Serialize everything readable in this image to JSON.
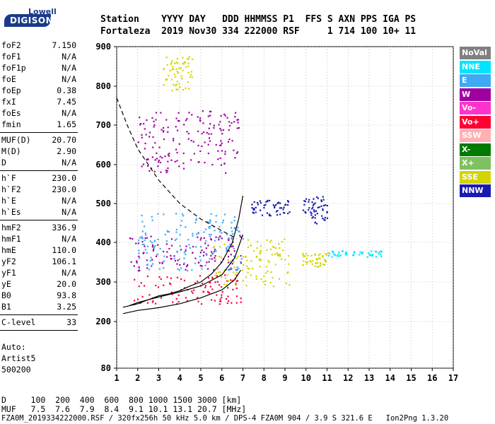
{
  "logo": {
    "top": "Lowell",
    "bottom": "DIGISONDE"
  },
  "header": {
    "row1": "Station    YYYY DAY   DDD HHMMSS P1  FFS S AXN PPS IGA PS",
    "row2": "Fortaleza  2019 Nov30 334 222000 RSF     1 714 100 10+ 11"
  },
  "params_group1": [
    {
      "key": "foF2",
      "value": "7.150"
    },
    {
      "key": "foF1",
      "value": "N/A"
    },
    {
      "key": "foF1p",
      "value": "N/A"
    },
    {
      "key": "foE",
      "value": "N/A"
    },
    {
      "key": "foEp",
      "value": "0.38"
    },
    {
      "key": "fxI",
      "value": "7.45"
    },
    {
      "key": "foEs",
      "value": "N/A"
    },
    {
      "key": "fmin",
      "value": "1.65"
    }
  ],
  "params_group2": [
    {
      "key": "MUF(D)",
      "value": "20.70"
    },
    {
      "key": "M(D)",
      "value": "2.90"
    },
    {
      "key": "D",
      "value": "N/A"
    }
  ],
  "params_group3": [
    {
      "key": "h`F",
      "value": "230.0"
    },
    {
      "key": "h`F2",
      "value": "230.0"
    },
    {
      "key": "h`E",
      "value": "N/A"
    },
    {
      "key": "h`Es",
      "value": "N/A"
    }
  ],
  "params_group4": [
    {
      "key": "hmF2",
      "value": "336.9"
    },
    {
      "key": "hmF1",
      "value": "N/A"
    },
    {
      "key": "hmE",
      "value": "110.0"
    },
    {
      "key": "yF2",
      "value": "106.1"
    },
    {
      "key": "yF1",
      "value": "N/A"
    },
    {
      "key": "yE",
      "value": "20.0"
    },
    {
      "key": "B0",
      "value": "93.8"
    },
    {
      "key": "B1",
      "value": "3.25"
    }
  ],
  "params_group5": [
    {
      "key": "C-level",
      "value": "33"
    }
  ],
  "autoscale": {
    "line1": "Auto:",
    "line2": "Artist5",
    "line3": "500200"
  },
  "legend": [
    {
      "label": "NoVal",
      "color": "#808080"
    },
    {
      "label": "NNE",
      "color": "#00e5ff"
    },
    {
      "label": "E",
      "color": "#3fa9f5"
    },
    {
      "label": "W",
      "color": "#a000a0"
    },
    {
      "label": "Vo-",
      "color": "#ff33cc"
    },
    {
      "label": "Vo+",
      "color": "#ff0033"
    },
    {
      "label": "SSW",
      "color": "#ffb0b0"
    },
    {
      "label": "X-",
      "color": "#007a00"
    },
    {
      "label": "X+",
      "color": "#7fc060"
    },
    {
      "label": "SSE",
      "color": "#d4d400"
    },
    {
      "label": "NNW",
      "color": "#1a1ab0"
    }
  ],
  "footer": {
    "row1": "D     100  200  400  600  800 1000 1500 3000 [km]",
    "row2": "MUF   7.5  7.6  7.9  8.4  9.1 10.1 13.1 20.7 [MHz]",
    "row3": "FZA0M_2019334222000.RSF / 320fx256h 50 kHz 5.0 km / DPS-4 FZA0M 904 / 3.9 S 321.6 E   Ion2Png 1.3.20"
  },
  "chart_data": {
    "type": "scatter",
    "xlim": [
      1,
      17
    ],
    "ylim": [
      80,
      900
    ],
    "x_ticks": [
      "1",
      "2",
      "3",
      "4",
      "5",
      "6",
      "7",
      "8",
      "9",
      "10",
      "11",
      "12",
      "13",
      "14",
      "15",
      "16",
      "17"
    ],
    "y_ticks": [
      "80",
      "200",
      "300",
      "400",
      "500",
      "600",
      "700",
      "800",
      "900"
    ],
    "grid": "dotted",
    "traces": [
      {
        "name": "low-profile",
        "points": [
          [
            1.3,
            220
          ],
          [
            2,
            228
          ],
          [
            3,
            235
          ],
          [
            4,
            245
          ],
          [
            5,
            260
          ],
          [
            6,
            280
          ],
          [
            6.6,
            305
          ],
          [
            6.9,
            330
          ]
        ]
      },
      {
        "name": "upper-profile",
        "points": [
          [
            1.3,
            236
          ],
          [
            2,
            245
          ],
          [
            2.5,
            255
          ],
          [
            3,
            265
          ],
          [
            3.5,
            270
          ],
          [
            4,
            278
          ],
          [
            4.5,
            290
          ],
          [
            5,
            300
          ],
          [
            5.5,
            320
          ],
          [
            6,
            350
          ],
          [
            6.5,
            400
          ],
          [
            6.8,
            460
          ],
          [
            7,
            520
          ]
        ]
      },
      {
        "name": "trace-fit",
        "points": [
          [
            1.6,
            240
          ],
          [
            2,
            248
          ],
          [
            3,
            262
          ],
          [
            4,
            275
          ],
          [
            5,
            290
          ],
          [
            6,
            318
          ],
          [
            6.6,
            360
          ],
          [
            7,
            420
          ]
        ]
      },
      {
        "name": "dashed",
        "points": [
          [
            1,
            770
          ],
          [
            1.5,
            700
          ],
          [
            2,
            640
          ],
          [
            3,
            560
          ],
          [
            4,
            500
          ],
          [
            5,
            460
          ],
          [
            6,
            430
          ],
          [
            6.7,
            410
          ]
        ]
      }
    ],
    "echo_bands": [
      {
        "color": "#a000a0",
        "x": [
          1.6,
          6.9
        ],
        "y": [
          330,
          420
        ]
      },
      {
        "color": "#ff0033",
        "x": [
          1.8,
          6.9
        ],
        "y": [
          245,
          320
        ]
      },
      {
        "color": "#d4d400",
        "x": [
          5.5,
          9.2
        ],
        "y": [
          290,
          410
        ]
      },
      {
        "color": "#3fa9f5",
        "x": [
          2,
          7
        ],
        "y": [
          330,
          480
        ]
      },
      {
        "color": "#1a1ab0",
        "x": [
          7.4,
          9.2
        ],
        "y": [
          470,
          510
        ]
      },
      {
        "color": "#1a1ab0",
        "x": [
          9.8,
          11
        ],
        "y": [
          450,
          520
        ]
      },
      {
        "color": "#d4d400",
        "x": [
          9.8,
          11
        ],
        "y": [
          340,
          375
        ]
      },
      {
        "color": "#00e5ff",
        "x": [
          11,
          13.6
        ],
        "y": [
          365,
          380
        ]
      },
      {
        "color": "#a000a0",
        "x": [
          2,
          6.8
        ],
        "y": [
          580,
          740
        ]
      },
      {
        "color": "#d4d400",
        "x": [
          3.2,
          4.6
        ],
        "y": [
          790,
          880
        ]
      }
    ]
  }
}
